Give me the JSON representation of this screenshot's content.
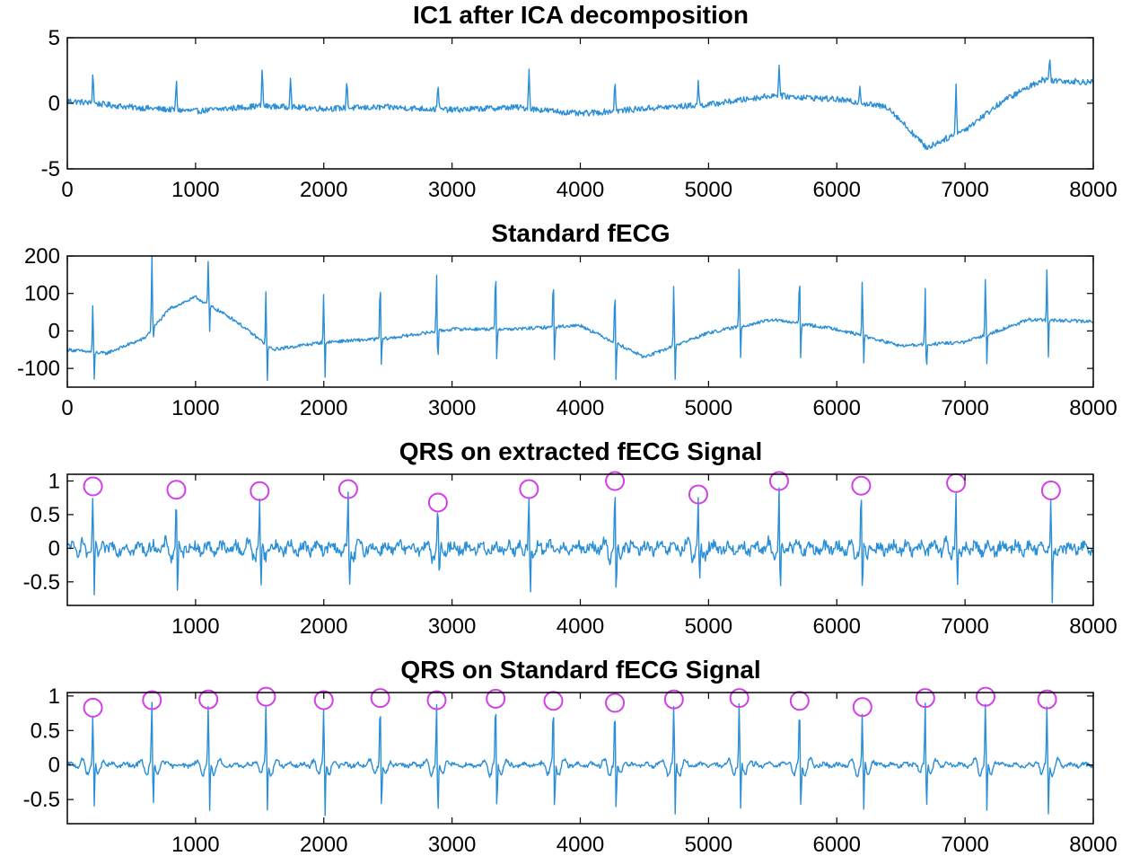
{
  "colors": {
    "signal": "#2a8fd6",
    "marker": "#d33fe6",
    "axis": "#000000",
    "background": "#ffffff"
  },
  "chart_data": [
    {
      "type": "line",
      "title": "IC1 after ICA decomposition",
      "xlabel": "",
      "ylabel": "",
      "xlim": [
        0,
        8000
      ],
      "ylim": [
        -5,
        5
      ],
      "xticks": [
        0,
        1000,
        2000,
        3000,
        4000,
        5000,
        6000,
        7000,
        8000
      ],
      "xtick_labels": [
        "0",
        "1000",
        "2000",
        "3000",
        "4000",
        "5000",
        "6000",
        "7000",
        "8000"
      ],
      "yticks": [
        5,
        0,
        -5
      ],
      "ytick_labels": [
        "5",
        "0",
        "-5"
      ],
      "grid": false,
      "series": [
        {
          "peaks_x": [
            200,
            850,
            1520,
            1740,
            2180,
            2890,
            3600,
            4270,
            4920,
            5550,
            6180,
            6930,
            7660
          ],
          "peaks_y": [
            2.3,
            1.7,
            2.6,
            2.1,
            1.9,
            1.6,
            2.6,
            1.8,
            1.7,
            3.0,
            1.5,
            1.6,
            3.5
          ],
          "baseline_x": [
            0,
            500,
            1000,
            1500,
            2000,
            2500,
            3000,
            3500,
            4000,
            4500,
            5000,
            5500,
            6000,
            6400,
            6700,
            7000,
            7300,
            7600,
            8000
          ],
          "baseline_y": [
            0.2,
            -0.3,
            -0.6,
            -0.2,
            -0.4,
            -0.3,
            -0.5,
            -0.3,
            -0.8,
            -0.4,
            -0.1,
            0.6,
            0.3,
            -0.3,
            -3.4,
            -2.0,
            0.2,
            1.8,
            1.6
          ]
        }
      ]
    },
    {
      "type": "line",
      "title": "Standard fECG",
      "xlabel": "",
      "ylabel": "",
      "xlim": [
        0,
        8000
      ],
      "ylim": [
        -150,
        200
      ],
      "xticks": [
        0,
        1000,
        2000,
        3000,
        4000,
        5000,
        6000,
        7000,
        8000
      ],
      "xtick_labels": [
        "0",
        "1000",
        "2000",
        "3000",
        "4000",
        "5000",
        "6000",
        "7000",
        "8000"
      ],
      "yticks": [
        200,
        100,
        0,
        -100
      ],
      "ytick_labels": [
        "200",
        "100",
        "0",
        "-100"
      ],
      "grid": false,
      "series": [
        {
          "peaks_x": [
            200,
            660,
            1100,
            1550,
            2000,
            2440,
            2880,
            3340,
            3790,
            4270,
            4730,
            5240,
            5710,
            6200,
            6690,
            7160,
            7640
          ],
          "peaks_y": [
            85,
            200,
            200,
            120,
            120,
            145,
            160,
            175,
            150,
            125,
            145,
            185,
            160,
            155,
            120,
            160,
            185
          ],
          "troughs_y": [
            -150,
            -40,
            -20,
            -155,
            -148,
            -115,
            -110,
            -95,
            -100,
            -150,
            -150,
            -90,
            -95,
            -100,
            -135,
            -105,
            -90
          ],
          "baseline_x": [
            0,
            300,
            600,
            800,
            1000,
            1300,
            1600,
            2000,
            2500,
            3000,
            3500,
            4000,
            4500,
            5000,
            5500,
            6000,
            6500,
            7000,
            7500,
            8000
          ],
          "baseline_y": [
            -50,
            -60,
            -20,
            60,
            90,
            30,
            -50,
            -30,
            -20,
            5,
            5,
            15,
            -70,
            -5,
            30,
            5,
            -40,
            -30,
            30,
            25
          ]
        }
      ]
    },
    {
      "type": "line",
      "title": "QRS on extracted fECG Signal",
      "xlabel": "",
      "ylabel": "",
      "xlim": [
        0,
        8000
      ],
      "ylim": [
        -0.85,
        1.1
      ],
      "xticks": [
        1000,
        2000,
        3000,
        4000,
        5000,
        6000,
        7000,
        8000
      ],
      "xtick_labels": [
        "1000",
        "2000",
        "3000",
        "4000",
        "5000",
        "6000",
        "7000",
        "8000"
      ],
      "yticks": [
        1,
        0.5,
        0,
        -0.5
      ],
      "ytick_labels": [
        "1",
        "0.5",
        "0",
        "-0.5"
      ],
      "grid": false,
      "series": [
        {
          "qrs_x": [
            200,
            850,
            1500,
            2190,
            2890,
            3600,
            4270,
            4920,
            5550,
            6190,
            6930,
            7670
          ],
          "qrs_y": [
            0.92,
            0.87,
            0.85,
            0.88,
            0.68,
            0.88,
            1.0,
            0.8,
            1.0,
            0.93,
            0.97,
            0.86
          ],
          "troughs_y": [
            -0.75,
            -0.8,
            -0.75,
            -0.75,
            -0.6,
            -0.75,
            -0.8,
            -0.75,
            -0.85,
            -0.8,
            -0.75,
            -0.8
          ]
        }
      ]
    },
    {
      "type": "line",
      "title": "QRS on Standard fECG Signal",
      "xlabel": "",
      "ylabel": "",
      "xlim": [
        0,
        8000
      ],
      "ylim": [
        -0.85,
        1.05
      ],
      "xticks": [
        1000,
        2000,
        3000,
        4000,
        5000,
        6000,
        7000,
        8000
      ],
      "xtick_labels": [
        "1000",
        "2000",
        "3000",
        "4000",
        "5000",
        "6000",
        "7000",
        "8000"
      ],
      "yticks": [
        1,
        0.5,
        0,
        -0.5
      ],
      "ytick_labels": [
        "1",
        "0.5",
        "0",
        "-0.5"
      ],
      "grid": false,
      "series": [
        {
          "qrs_x": [
            200,
            660,
            1100,
            1550,
            2000,
            2440,
            2880,
            3340,
            3790,
            4270,
            4730,
            5240,
            5710,
            6200,
            6690,
            7160,
            7640
          ],
          "qrs_y": [
            0.83,
            0.94,
            0.95,
            0.99,
            0.94,
            0.97,
            0.94,
            0.96,
            0.93,
            0.9,
            0.95,
            0.97,
            0.93,
            0.84,
            0.97,
            0.99,
            0.95
          ],
          "troughs_y": [
            -0.7,
            -0.8,
            -0.8,
            -0.75,
            -0.8,
            -0.8,
            -0.85,
            -0.8,
            -0.8,
            -0.8,
            -0.8,
            -0.75,
            -0.8,
            -0.75,
            -0.8,
            -0.8,
            -0.8
          ]
        }
      ]
    }
  ]
}
